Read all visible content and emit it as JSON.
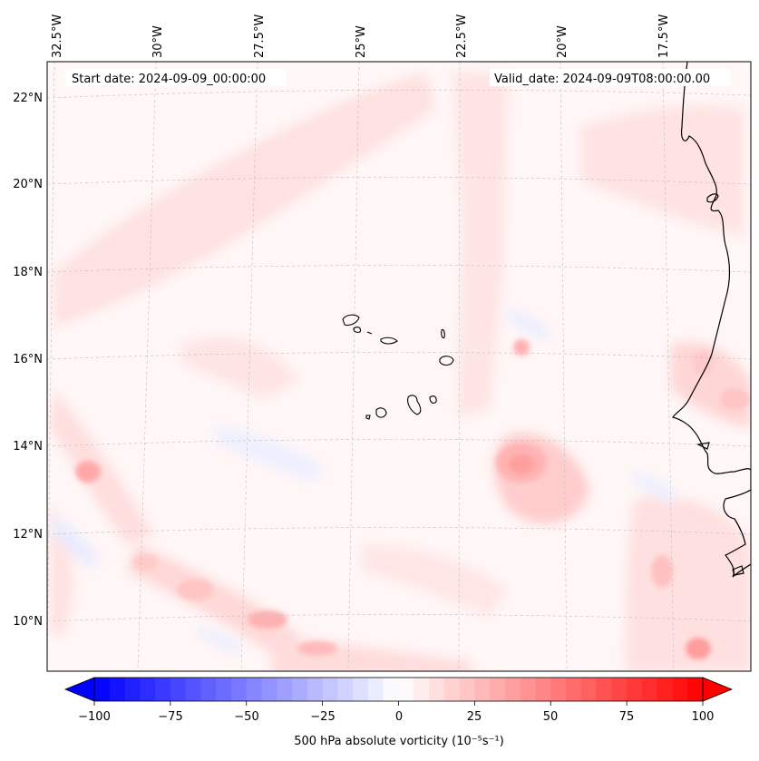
{
  "header": {
    "start_label": "Start date: 2024-09-09_00:00:00",
    "valid_label": "Valid_date: 2024-09-09T08:00:00.00"
  },
  "map": {
    "lon_labels": [
      "32.5°W",
      "30°W",
      "27.5°W",
      "25°W",
      "22.5°W",
      "20°W",
      "17.5°W"
    ],
    "lat_labels": [
      "22°N",
      "20°N",
      "18°N",
      "16°N",
      "14°N",
      "12°N",
      "10°N"
    ],
    "field": "500 hPa absolute vorticity",
    "grid": true,
    "coastline_color": "#000000"
  },
  "colorbar": {
    "label": "500 hPa absolute vorticity (10⁻⁵s⁻¹)",
    "ticks": [
      "−100",
      "−75",
      "−50",
      "−25",
      "0",
      "25",
      "50",
      "75",
      "100"
    ],
    "vmin": -100,
    "vmax": 100,
    "step": 5,
    "extend": "both",
    "cmap": "bwr"
  }
}
